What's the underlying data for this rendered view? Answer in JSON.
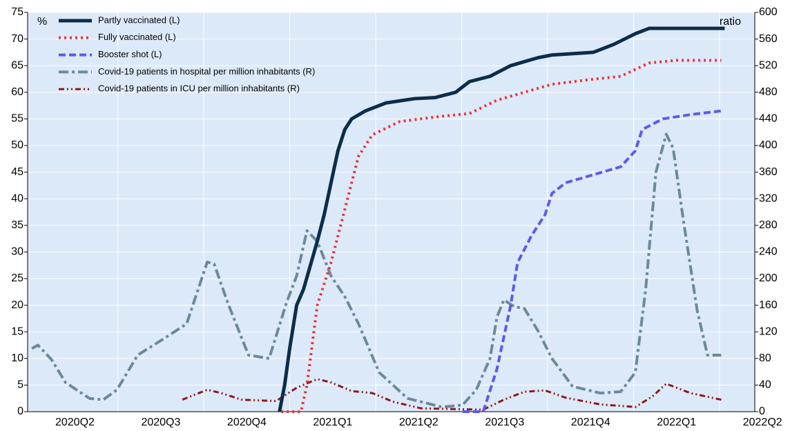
{
  "chart_data": {
    "type": "line",
    "ylabel": "%",
    "y2label": "ratio",
    "xlim": [
      -0.05,
      8.41
    ],
    "xticks": [
      {
        "value": 0.5,
        "label": "2020Q2"
      },
      {
        "value": 1.5,
        "label": "2020Q3"
      },
      {
        "value": 2.5,
        "label": "2020Q4"
      },
      {
        "value": 3.5,
        "label": "2021Q1"
      },
      {
        "value": 4.5,
        "label": "2021Q2"
      },
      {
        "value": 5.5,
        "label": "2021Q3"
      },
      {
        "value": 6.5,
        "label": "2021Q4"
      },
      {
        "value": 7.5,
        "label": "2022Q1"
      },
      {
        "value": 8.5,
        "label": "2022Q2"
      }
    ],
    "xgrid": [
      1,
      2,
      3,
      4,
      5,
      6,
      7,
      8
    ],
    "ylim": [
      0,
      75
    ],
    "yticks": [
      0,
      5,
      10,
      15,
      20,
      25,
      30,
      35,
      40,
      45,
      50,
      55,
      60,
      65,
      70,
      75
    ],
    "y2lim": [
      0,
      600
    ],
    "y2ticks": [
      0,
      40,
      80,
      120,
      160,
      200,
      240,
      280,
      320,
      360,
      400,
      440,
      480,
      520,
      560,
      600
    ],
    "grid": true,
    "legend": "upper left",
    "background": "#dce9f8",
    "series": [
      {
        "name": "Partly vaccinated (L)",
        "color": "#0b2d4a",
        "style": "solid",
        "x": [
          2.88,
          2.94,
          3.0,
          3.08,
          3.16,
          3.32,
          3.4,
          3.48,
          3.56,
          3.64,
          3.72,
          3.88,
          4.12,
          4.45,
          4.69,
          4.93,
          5.09,
          5.33,
          5.57,
          5.89,
          6.05,
          6.53,
          6.77,
          7.02,
          7.18,
          8.06
        ],
        "values": [
          0,
          5,
          12,
          20,
          23,
          32,
          37,
          43,
          49,
          53,
          55,
          56.5,
          58,
          58.8,
          59,
          60,
          62,
          63,
          65,
          66.5,
          67,
          67.5,
          69,
          71,
          72,
          72
        ]
      },
      {
        "name": "Fully vaccinated (L)",
        "color": "#e8343b",
        "style": "dotted",
        "x": [
          2.9,
          3.13,
          3.2,
          3.32,
          3.48,
          3.64,
          3.8,
          3.96,
          4.28,
          4.77,
          5.09,
          5.41,
          5.73,
          6.05,
          6.45,
          6.85,
          7.18,
          7.5,
          8.02
        ],
        "values": [
          0,
          0,
          5,
          20,
          28,
          38,
          48,
          52,
          54.5,
          55.5,
          56,
          58.5,
          60,
          61.5,
          62.3,
          63,
          65.5,
          66,
          66
        ]
      },
      {
        "name": "Booster shot (L)",
        "color": "#5b5bf0",
        "style": "dashed",
        "x": [
          5.01,
          5.25,
          5.41,
          5.57,
          5.65,
          5.81,
          5.97,
          6.05,
          6.21,
          6.53,
          6.85,
          7.02,
          7.1,
          7.34,
          7.66,
          8.02
        ],
        "values": [
          0,
          0,
          8,
          20,
          28,
          33,
          37,
          41,
          43,
          44.5,
          46,
          49,
          53,
          55,
          55.8,
          56.5
        ]
      },
      {
        "name": "Covid-19 patients in hospital per million inhabitants (R)",
        "color": "#6b8a99",
        "style": "dashdot",
        "axis": "y2",
        "x": [
          0.0,
          0.07,
          0.23,
          0.39,
          0.67,
          0.83,
          0.99,
          1.23,
          1.55,
          1.8,
          2.04,
          2.12,
          2.28,
          2.52,
          2.76,
          2.96,
          3.08,
          3.2,
          3.32,
          3.48,
          3.64,
          3.8,
          4.04,
          4.37,
          4.77,
          5.01,
          5.17,
          5.33,
          5.41,
          5.49,
          5.61,
          5.73,
          5.89,
          6.05,
          6.29,
          6.61,
          6.85,
          7.02,
          7.14,
          7.26,
          7.38,
          7.46,
          7.58,
          7.74,
          7.86,
          8.02
        ],
        "values": [
          95,
          100,
          78,
          44,
          20,
          18,
          33,
          85,
          111,
          132,
          225,
          222,
          163,
          85,
          80,
          163,
          204,
          272,
          256,
          204,
          173,
          132,
          59,
          20,
          7,
          10,
          33,
          80,
          142,
          168,
          158,
          155,
          121,
          80,
          38,
          28,
          30,
          59,
          183,
          360,
          417,
          396,
          287,
          152,
          85,
          85
        ]
      },
      {
        "name": "Covid-19 patients in ICU per million inhabitants (R)",
        "color": "#8b1a1a",
        "style": "dashdotdot",
        "axis": "y2",
        "x": [
          1.75,
          2.04,
          2.2,
          2.44,
          2.84,
          3.08,
          3.32,
          3.48,
          3.72,
          3.96,
          4.2,
          4.53,
          5.25,
          5.49,
          5.73,
          5.97,
          6.21,
          6.61,
          7.02,
          7.22,
          7.38,
          7.66,
          8.02
        ],
        "values": [
          18,
          33,
          28,
          18,
          16,
          36,
          49,
          44,
          31,
          28,
          15,
          5,
          3,
          18,
          30,
          32,
          21,
          11,
          7,
          23,
          42,
          28,
          18
        ]
      }
    ]
  }
}
